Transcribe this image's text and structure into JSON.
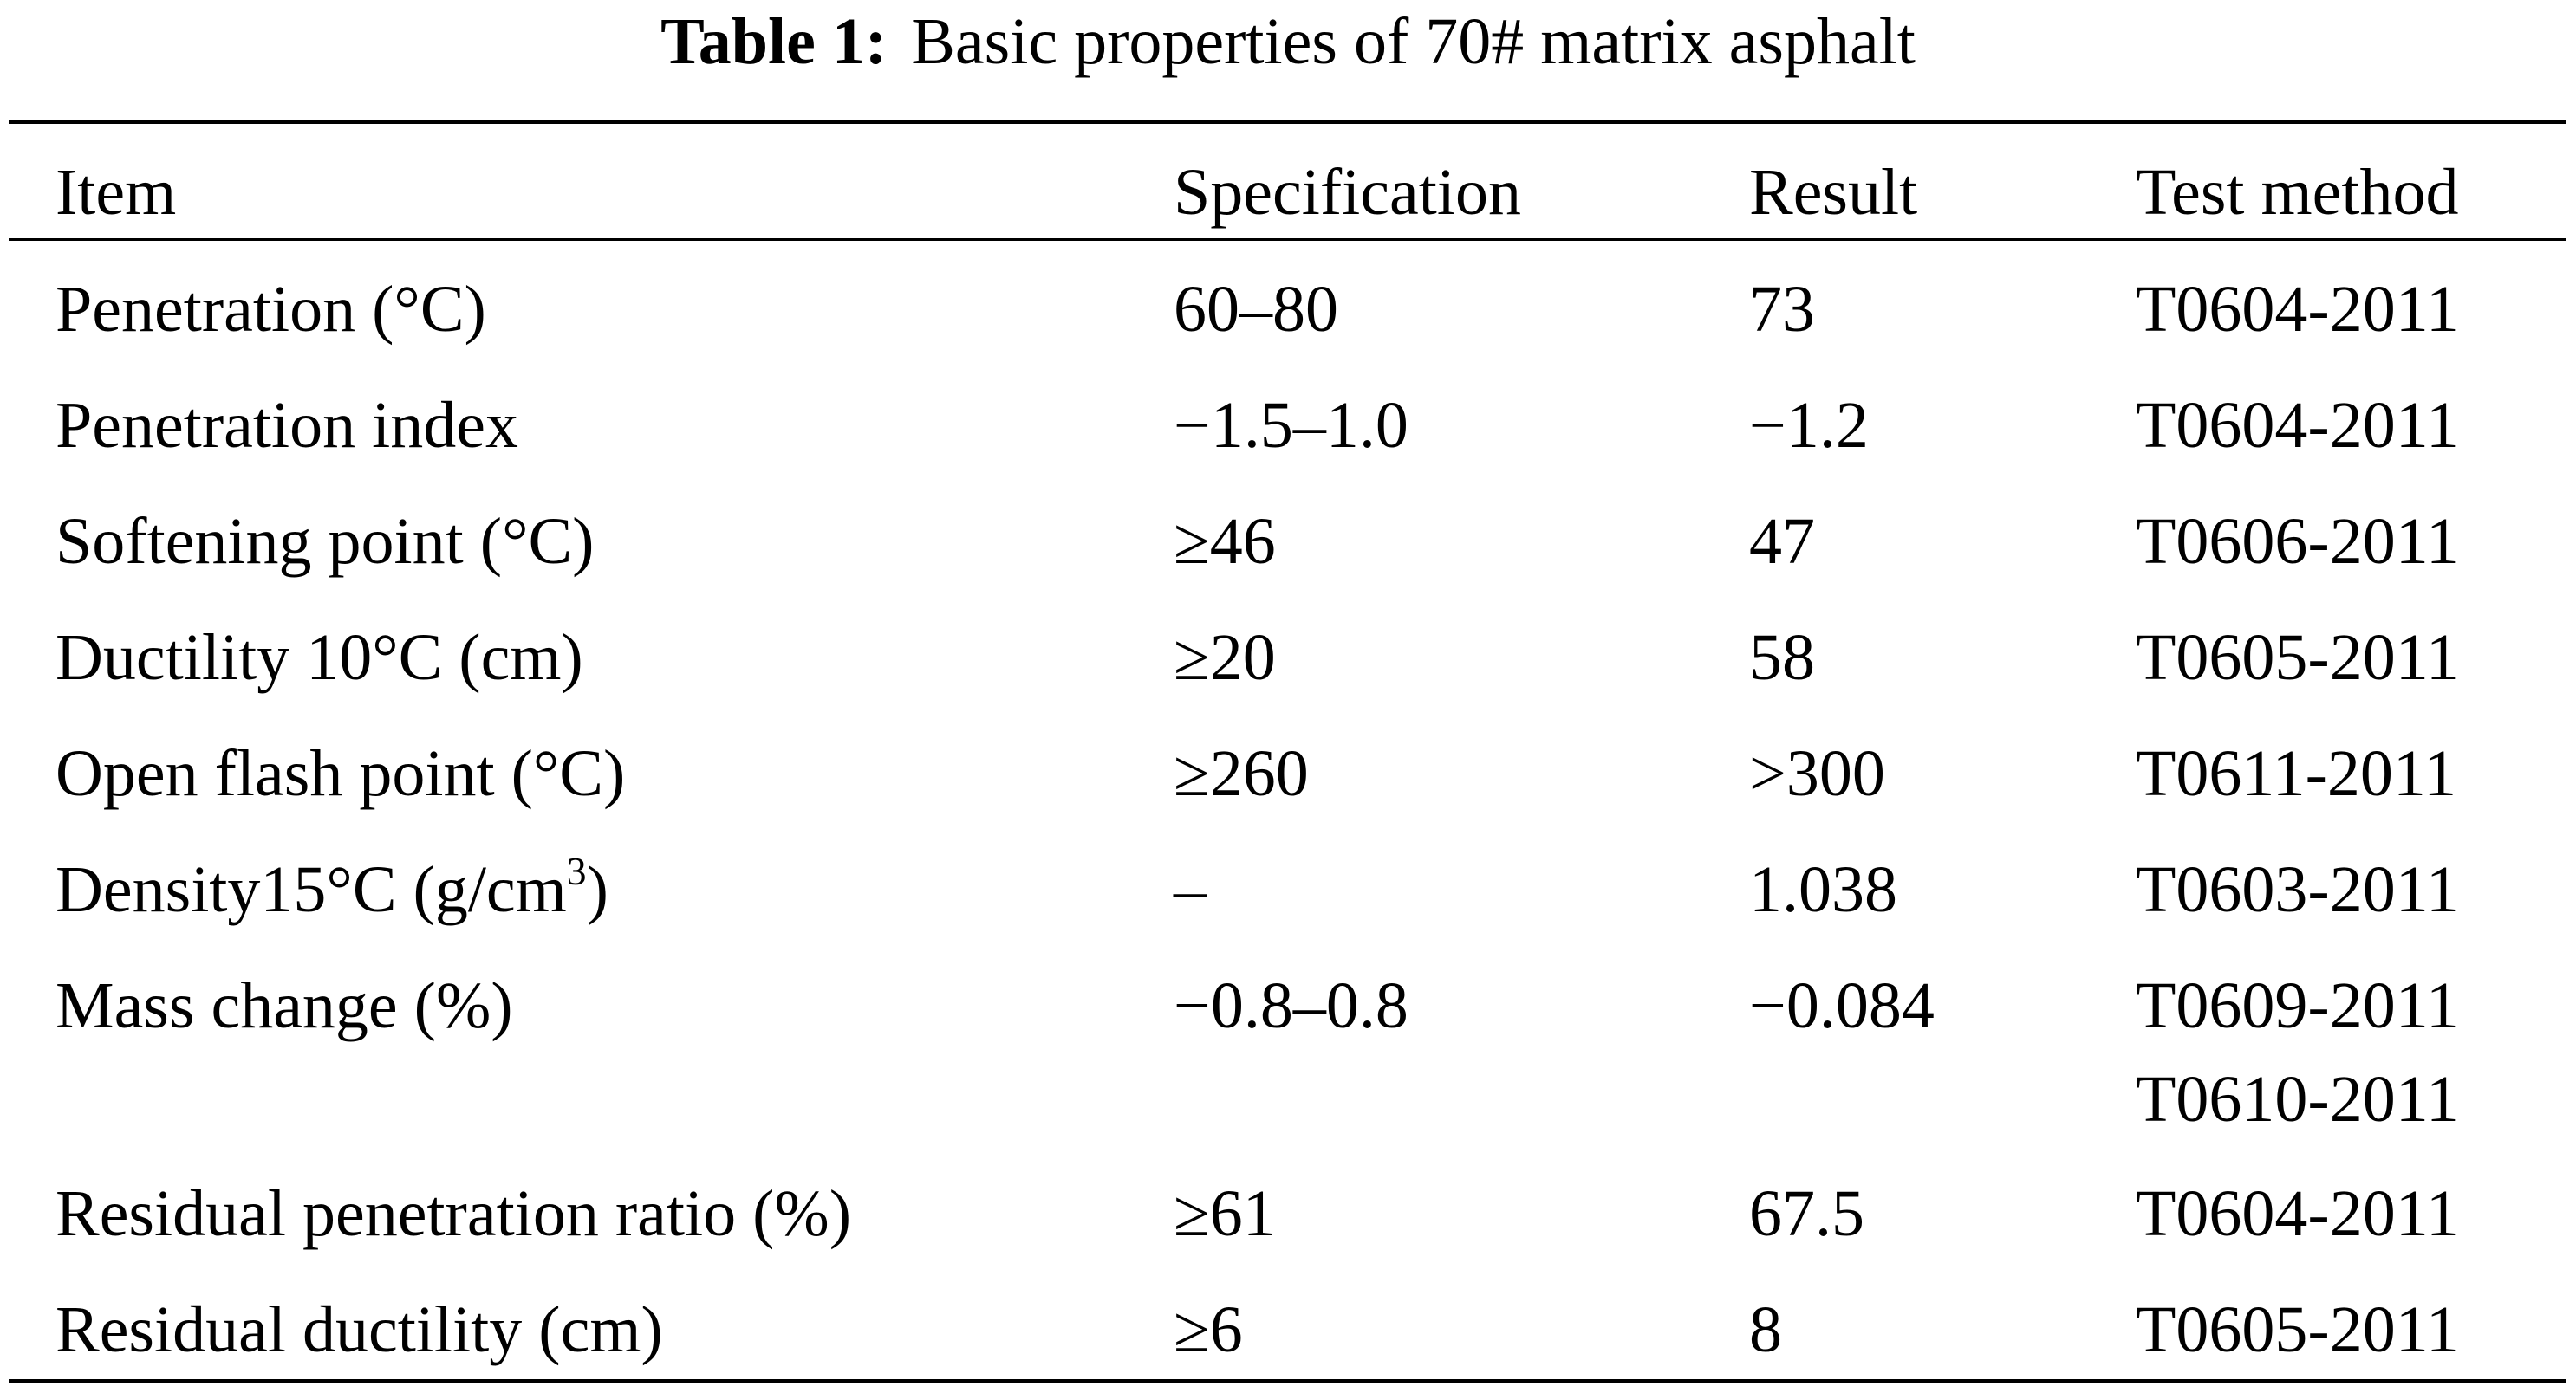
{
  "caption": {
    "label": "Table 1:",
    "text": "Basic properties of 70# matrix asphalt"
  },
  "table": {
    "headers": [
      "Item",
      "Specification",
      "Result",
      "Test method"
    ],
    "rows": [
      {
        "item": "Penetration (°C)",
        "spec": "60–80",
        "result": "73",
        "methods": [
          "T0604-2011"
        ]
      },
      {
        "item": "Penetration index",
        "spec": "−1.5–1.0",
        "result": "−1.2",
        "methods": [
          "T0604-2011"
        ]
      },
      {
        "item": "Softening point (°C)",
        "spec": "≥46",
        "result": "47",
        "methods": [
          "T0606-2011"
        ]
      },
      {
        "item": "Ductility 10°C (cm)",
        "spec": "≥20",
        "result": "58",
        "methods": [
          "T0605-2011"
        ]
      },
      {
        "item": "Open flash point (°C)",
        "spec": "≥260",
        "result": ">300",
        "methods": [
          "T0611-2011"
        ]
      },
      {
        "item_prefix": "Density15°C (g/cm",
        "item_sup": "3",
        "item_suffix": ")",
        "spec": "–",
        "result": "1.038",
        "methods": [
          "T0603-2011"
        ]
      },
      {
        "item": "Mass change (%)",
        "spec": "−0.8–0.8",
        "result": "−0.084",
        "methods": [
          "T0609-2011",
          "T0610-2011"
        ]
      },
      {
        "item": "Residual penetration ratio (%)",
        "spec": "≥61",
        "result": "67.5",
        "methods": [
          "T0604-2011"
        ]
      },
      {
        "item": "Residual ductility (cm)",
        "spec": "≥6",
        "result": "8",
        "methods": [
          "T0605-2011"
        ]
      }
    ]
  }
}
